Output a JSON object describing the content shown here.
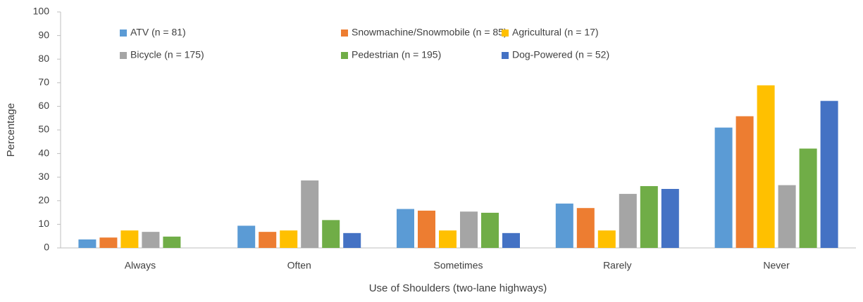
{
  "chart_data": {
    "type": "bar",
    "x_label": "Use of Shoulders (two-lane highways)",
    "y_label": "Percentage",
    "categories": [
      "Always",
      "Often",
      "Sometimes",
      "Rarely",
      "Never"
    ],
    "series": [
      {
        "name": "ATV (n = 81)",
        "color": "#5b9bd5",
        "values": [
          3.6,
          9.4,
          16.5,
          18.8,
          51.0
        ]
      },
      {
        "name": "Snowmachine/Snowmobile (n = 85)",
        "color": "#ed7d31",
        "values": [
          4.4,
          6.8,
          15.8,
          16.9,
          55.8
        ]
      },
      {
        "name": "Agricultural (n = 17)",
        "color": "#ffc000",
        "values": [
          7.4,
          7.4,
          7.4,
          7.4,
          68.9
        ]
      },
      {
        "name": "Bicycle (n = 175)",
        "color": "#a5a5a5",
        "values": [
          6.8,
          28.6,
          15.4,
          22.9,
          26.6
        ]
      },
      {
        "name": "Pedestrian (n = 195)",
        "color": "#70ad47",
        "values": [
          4.8,
          11.8,
          14.9,
          26.2,
          42.1
        ]
      },
      {
        "name": "Dog-Powered (n = 52)",
        "color": "#4472c4",
        "values": [
          0,
          6.3,
          6.3,
          25.0,
          62.3
        ]
      }
    ],
    "ylim": [
      0,
      100
    ],
    "yticks": [
      0,
      10,
      20,
      30,
      40,
      50,
      60,
      70,
      80,
      90,
      100
    ],
    "grid": false,
    "legend": "top"
  }
}
